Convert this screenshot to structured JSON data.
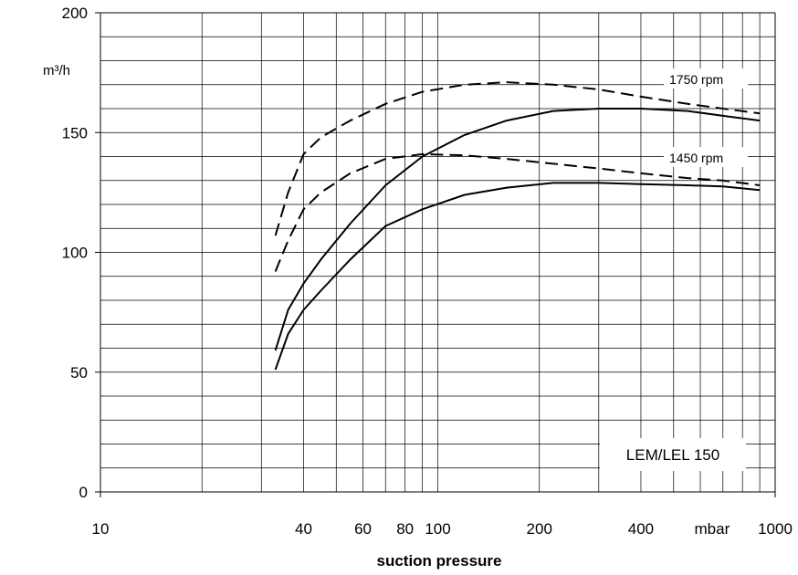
{
  "chart_data": {
    "type": "line",
    "title": "",
    "xlabel": "suction pressure",
    "ylabel": "m³/h",
    "x_scale": "log",
    "xlim": [
      10,
      1000
    ],
    "ylim": [
      0,
      200
    ],
    "x_ticks": [
      {
        "value": 10,
        "label": "10"
      },
      {
        "value": 40,
        "label": "40"
      },
      {
        "value": 60,
        "label": "60"
      },
      {
        "value": 80,
        "label": "80"
      },
      {
        "value": 100,
        "label": "100"
      },
      {
        "value": 200,
        "label": "200"
      },
      {
        "value": 400,
        "label": "400"
      },
      {
        "value": 650,
        "label": "mbar"
      },
      {
        "value": 1000,
        "label": "1000"
      }
    ],
    "y_ticks": [
      {
        "value": 0,
        "label": "0"
      },
      {
        "value": 50,
        "label": "50"
      },
      {
        "value": 100,
        "label": "100"
      },
      {
        "value": 150,
        "label": "150"
      },
      {
        "value": 200,
        "label": "200"
      }
    ],
    "grid": true,
    "box_label": "LEM/LEL 150",
    "annotations": [
      "1750 rpm",
      "1450 rpm"
    ],
    "series": [
      {
        "style": "dashed",
        "rpm": "1750 rpm",
        "x": [
          33,
          36,
          40,
          45,
          55,
          70,
          90,
          120,
          160,
          220,
          300,
          400,
          550,
          700,
          900
        ],
        "y": [
          107,
          125,
          141,
          148,
          155,
          162,
          167,
          170,
          171,
          170,
          168,
          165,
          162,
          160,
          158
        ]
      },
      {
        "style": "solid",
        "rpm": "1750 rpm",
        "x": [
          33,
          36,
          40,
          45,
          55,
          70,
          90,
          120,
          160,
          220,
          300,
          400,
          550,
          700,
          900
        ],
        "y": [
          59,
          76,
          87,
          97,
          112,
          128,
          140,
          149,
          155,
          159,
          160,
          160,
          159,
          157,
          155
        ]
      },
      {
        "style": "dashed",
        "rpm": "1450 rpm",
        "x": [
          33,
          36,
          40,
          45,
          55,
          70,
          90,
          120,
          160,
          220,
          300,
          400,
          550,
          700,
          900
        ],
        "y": [
          92,
          105,
          118,
          125,
          133,
          139,
          141,
          140.5,
          139,
          137,
          135,
          133,
          131,
          130,
          128
        ]
      },
      {
        "style": "solid",
        "rpm": "1450 rpm",
        "x": [
          33,
          36,
          40,
          45,
          55,
          70,
          90,
          120,
          160,
          220,
          300,
          400,
          550,
          700,
          900
        ],
        "y": [
          51,
          66,
          76,
          84,
          97,
          111,
          118,
          124,
          127,
          129,
          129,
          128.5,
          128,
          127.5,
          126
        ]
      }
    ],
    "colors": {
      "line": "#000000",
      "grid": "#000000",
      "background": "#ffffff"
    }
  }
}
